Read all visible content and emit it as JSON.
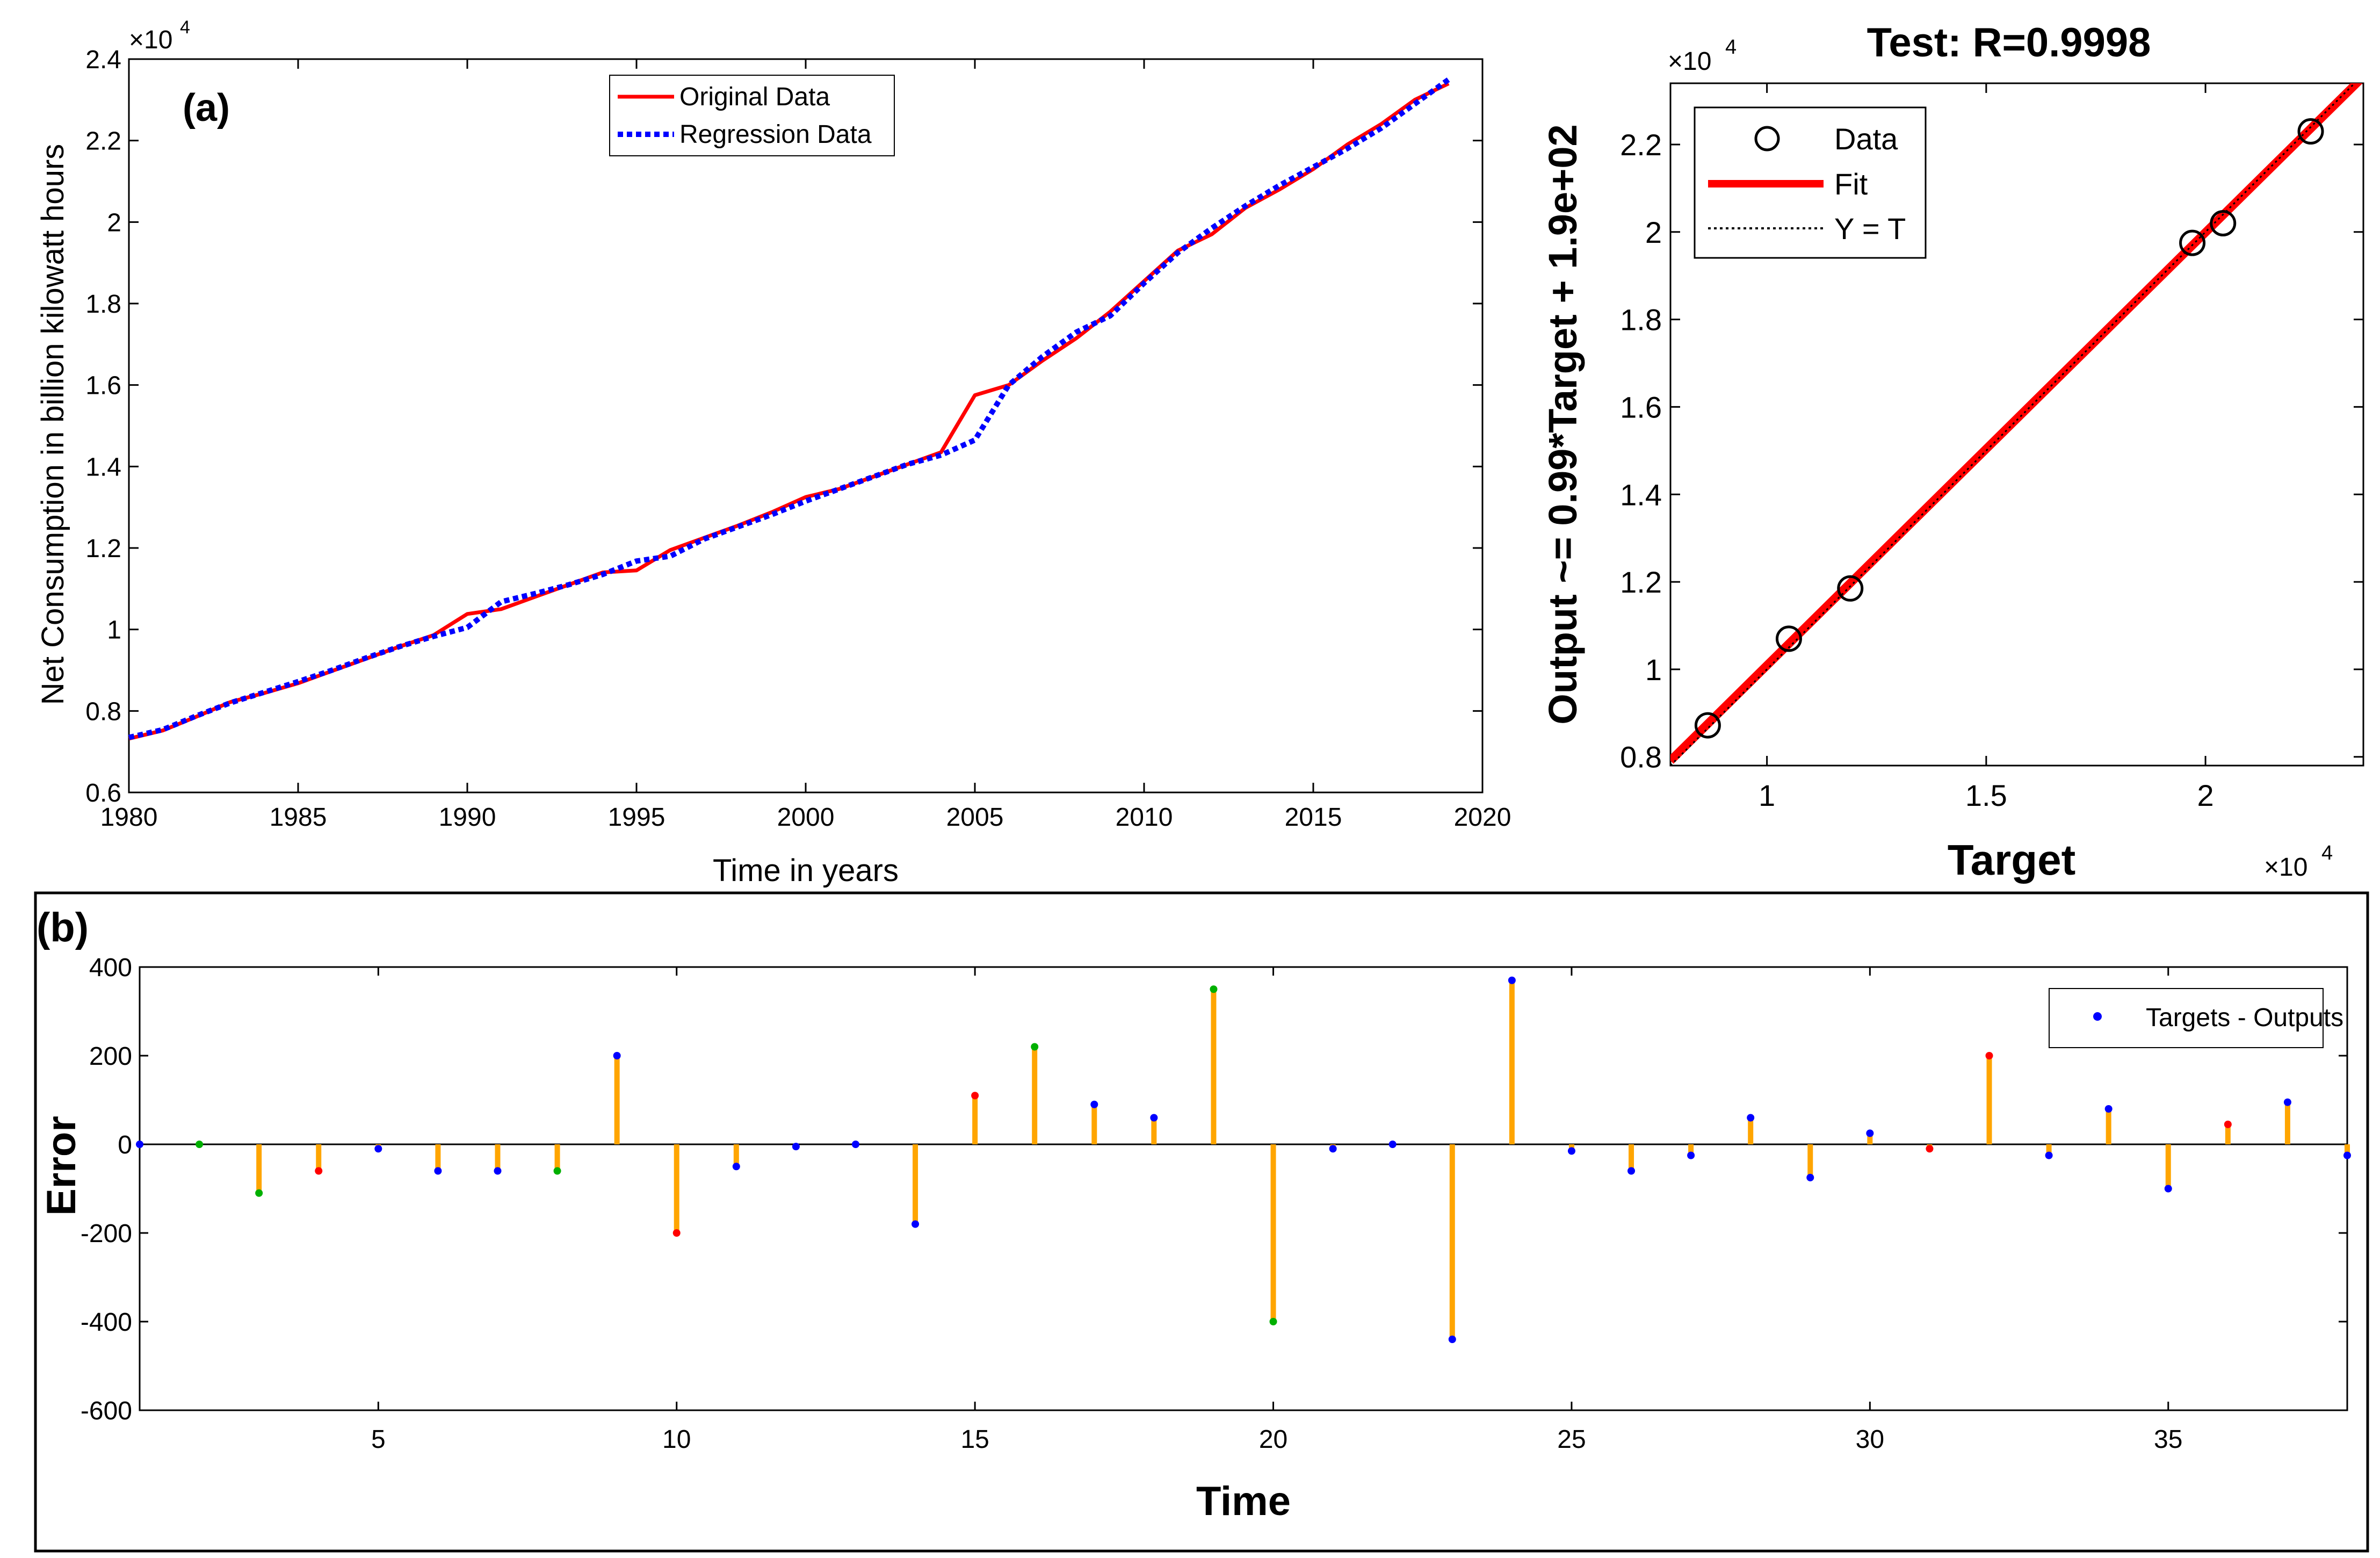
{
  "chart_data": [
    {
      "id": "a",
      "type": "line",
      "panel_label": "(a)",
      "xlabel": "Time in years",
      "ylabel": "Net Consumption in billion kilowatt hours",
      "y_exponent": "×10",
      "y_exponent_power": "4",
      "xlim": [
        1980,
        2020
      ],
      "ylim": [
        0.6,
        2.4
      ],
      "xticks": [
        1980,
        1985,
        1990,
        1995,
        2000,
        2005,
        2010,
        2015,
        2020
      ],
      "yticks": [
        0.6,
        0.8,
        1,
        1.2,
        1.4,
        1.6,
        1.8,
        2,
        2.2,
        2.4
      ],
      "ytick_labels": [
        "0.6",
        "0.8",
        "1",
        "1.2",
        "1.4",
        "1.6",
        "1.8",
        "2",
        "2.2",
        "2.4"
      ],
      "series": [
        {
          "name": "Original Data",
          "color": "#ff0000",
          "style": "solid",
          "x": [
            1980,
            1981,
            1982,
            1983,
            1984,
            1985,
            1986,
            1987,
            1988,
            1989,
            1990,
            1991,
            1992,
            1993,
            1994,
            1995,
            1996,
            1997,
            1998,
            1999,
            2000,
            2001,
            2002,
            2003,
            2004,
            2005,
            2006,
            2007,
            2008,
            2009,
            2010,
            2011,
            2012,
            2013,
            2014,
            2015,
            2016,
            2017,
            2018,
            2019
          ],
          "values": [
            0.732,
            0.752,
            0.786,
            0.822,
            0.844,
            0.868,
            0.898,
            0.928,
            0.958,
            0.986,
            1.038,
            1.05,
            1.08,
            1.11,
            1.14,
            1.145,
            1.195,
            1.225,
            1.255,
            1.288,
            1.325,
            1.345,
            1.375,
            1.405,
            1.435,
            1.575,
            1.6,
            1.66,
            1.715,
            1.78,
            1.855,
            1.93,
            1.97,
            2.035,
            2.08,
            2.13,
            2.19,
            2.24,
            2.3,
            2.34
          ]
        },
        {
          "name": "Regression Data",
          "color": "#0000ff",
          "style": "dotted",
          "x": [
            1980,
            1981,
            1982,
            1983,
            1984,
            1985,
            1986,
            1987,
            1988,
            1989,
            1990,
            1991,
            1992,
            1993,
            1994,
            1995,
            1996,
            1997,
            1998,
            1999,
            2000,
            2001,
            2002,
            2003,
            2004,
            2005,
            2006,
            2007,
            2008,
            2009,
            2010,
            2011,
            2012,
            2013,
            2014,
            2015,
            2016,
            2017,
            2018,
            2019
          ],
          "values": [
            0.735,
            0.754,
            0.788,
            0.82,
            0.846,
            0.872,
            0.9,
            0.93,
            0.958,
            0.983,
            1.005,
            1.068,
            1.088,
            1.11,
            1.135,
            1.168,
            1.18,
            1.222,
            1.252,
            1.282,
            1.315,
            1.345,
            1.375,
            1.405,
            1.428,
            1.465,
            1.6,
            1.67,
            1.73,
            1.77,
            1.85,
            1.925,
            1.985,
            2.04,
            2.09,
            2.135,
            2.18,
            2.23,
            2.29,
            2.35
          ]
        }
      ],
      "legend": [
        "Original Data",
        "Regression Data"
      ],
      "legend_position": "top-center"
    },
    {
      "id": "regression",
      "type": "scatter",
      "title": "Test: R=0.9998",
      "xlabel": "Target",
      "ylabel": "Output ~= 0.99*Target + 1.9e+02",
      "x_exponent": "×10",
      "x_exponent_power": "4",
      "y_exponent": "×10",
      "y_exponent_power": "4",
      "xlim": [
        0.78,
        2.36
      ],
      "ylim": [
        0.78,
        2.34
      ],
      "xticks": [
        1,
        1.5,
        2
      ],
      "xtick_labels": [
        "1",
        "1.5",
        "2"
      ],
      "yticks": [
        0.8,
        1,
        1.2,
        1.4,
        1.6,
        1.8,
        2,
        2.2
      ],
      "ytick_labels": [
        "0.8",
        "1",
        "1.2",
        "1.4",
        "1.6",
        "1.8",
        "2",
        "2.2"
      ],
      "points": {
        "x": [
          0.865,
          1.05,
          1.19,
          1.97,
          2.04,
          2.24
        ],
        "y": [
          0.872,
          1.07,
          1.185,
          1.975,
          2.02,
          2.23
        ]
      },
      "fit": {
        "slope": 0.99,
        "intercept": 0.019,
        "color": "#ff0000"
      },
      "legend": [
        "Data",
        "Fit",
        "Y = T"
      ],
      "legend_position": "top-left"
    },
    {
      "id": "b",
      "type": "stem",
      "panel_label": "(b)",
      "xlabel": "Time",
      "ylabel": "Error",
      "xlim": [
        1,
        38
      ],
      "ylim": [
        -600,
        400
      ],
      "xticks": [
        5,
        10,
        15,
        20,
        25,
        30,
        35
      ],
      "yticks": [
        -600,
        -400,
        -200,
        0,
        200,
        400
      ],
      "stem_color": "#ffa500",
      "x": [
        1,
        2,
        3,
        4,
        5,
        6,
        7,
        8,
        9,
        10,
        11,
        12,
        13,
        14,
        15,
        16,
        17,
        18,
        19,
        20,
        21,
        22,
        23,
        24,
        25,
        26,
        27,
        28,
        29,
        30,
        31,
        32,
        33,
        34,
        35,
        36,
        37,
        38
      ],
      "values": [
        0,
        0,
        -110,
        -60,
        -10,
        -60,
        -60,
        -60,
        200,
        -200,
        -50,
        -5,
        0,
        -180,
        110,
        220,
        90,
        60,
        350,
        -400,
        -10,
        0,
        -440,
        370,
        -15,
        -60,
        -25,
        60,
        -75,
        25,
        -10,
        200,
        -25,
        80,
        -100,
        45,
        95,
        -25
      ],
      "dot_colors": [
        "#0000ff",
        "#00b000",
        "#00b000",
        "#ff0000",
        "#0000ff",
        "#0000ff",
        "#0000ff",
        "#00b000",
        "#0000ff",
        "#ff0000",
        "#0000ff",
        "#0000ff",
        "#0000ff",
        "#0000ff",
        "#ff0000",
        "#00b000",
        "#0000ff",
        "#0000ff",
        "#00b000",
        "#00b000",
        "#0000ff",
        "#0000ff",
        "#0000ff",
        "#0000ff",
        "#0000ff",
        "#0000ff",
        "#0000ff",
        "#0000ff",
        "#0000ff",
        "#0000ff",
        "#ff0000",
        "#ff0000",
        "#0000ff",
        "#0000ff",
        "#0000ff",
        "#ff0000",
        "#0000ff",
        "#0000ff"
      ],
      "legend": [
        "Targets - Outputs"
      ],
      "legend_position": "top-right"
    }
  ]
}
